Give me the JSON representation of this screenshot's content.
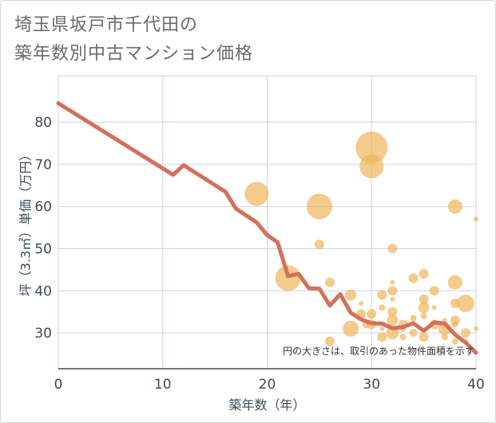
{
  "title_lines": [
    "埼玉県坂戸市千代田の",
    "築年数別中古マンション価格"
  ],
  "chart_data": {
    "type": "scatter",
    "title": "埼玉県坂戸市千代田の築年数別中古マンション価格",
    "xlabel": "築年数（年）",
    "ylabel": "坪（3.3㎡）単価（万円）",
    "xlim": [
      0,
      40
    ],
    "ylim": [
      21.5,
      91
    ],
    "x_ticks": [
      0,
      10,
      20,
      30,
      40
    ],
    "y_ticks": [
      30,
      40,
      50,
      60,
      70,
      80
    ],
    "grid": true,
    "note": "円の大きさは、取引のあった物件面積を示す",
    "colors": {
      "bubble": "#f0b55a",
      "line": "#d4705a",
      "grid": "#c8d6e5"
    },
    "series": [
      {
        "kind": "line",
        "x": [
          0,
          11,
          12,
          16,
          17,
          19,
          20,
          21,
          22,
          23,
          24,
          25,
          26,
          27,
          28,
          29,
          30,
          31,
          32,
          33,
          34,
          35,
          36,
          37,
          38,
          39,
          40
        ],
        "y": [
          84.5,
          67.5,
          69.8,
          63.5,
          59.5,
          56.2,
          53.2,
          51.5,
          43.5,
          44,
          40.6,
          40.5,
          36.5,
          39.2,
          34.8,
          33.2,
          32.3,
          32.2,
          31.1,
          31.4,
          32.3,
          30.5,
          32.5,
          32.2,
          29.6,
          27.7,
          25.3
        ]
      },
      {
        "kind": "bubbles",
        "points": [
          [
            19,
            63,
            15
          ],
          [
            22,
            43,
            16
          ],
          [
            25,
            60,
            16
          ],
          [
            25,
            51,
            6
          ],
          [
            26,
            42,
            6
          ],
          [
            26,
            28,
            6
          ],
          [
            28,
            39,
            7
          ],
          [
            28,
            31,
            10
          ],
          [
            29,
            34.5,
            6
          ],
          [
            29,
            37,
            3
          ],
          [
            29.5,
            32,
            5
          ],
          [
            30,
            74,
            20
          ],
          [
            30,
            69.5,
            15
          ],
          [
            30,
            34.5,
            6
          ],
          [
            30,
            32,
            6
          ],
          [
            31,
            39,
            6
          ],
          [
            31,
            36,
            4
          ],
          [
            31,
            29,
            6
          ],
          [
            31,
            31,
            3
          ],
          [
            32,
            50,
            6
          ],
          [
            32,
            42,
            3
          ],
          [
            32,
            40,
            6
          ],
          [
            32,
            38,
            3
          ],
          [
            32,
            35,
            6
          ],
          [
            32,
            33,
            7
          ],
          [
            32,
            30,
            8
          ],
          [
            33,
            32,
            6
          ],
          [
            33,
            29,
            4
          ],
          [
            33,
            31,
            4
          ],
          [
            34,
            43,
            6
          ],
          [
            34,
            30,
            5
          ],
          [
            34,
            33.5,
            4
          ],
          [
            35,
            44,
            6
          ],
          [
            35,
            38,
            6
          ],
          [
            35,
            36,
            7
          ],
          [
            35,
            34,
            4
          ],
          [
            35,
            29,
            6
          ],
          [
            36,
            40,
            6
          ],
          [
            36,
            32,
            6
          ],
          [
            36,
            36,
            3
          ],
          [
            37,
            31,
            8
          ],
          [
            37,
            29,
            4
          ],
          [
            37,
            33,
            3
          ],
          [
            38,
            60,
            9
          ],
          [
            38,
            42,
            9
          ],
          [
            38,
            37,
            6
          ],
          [
            38,
            33,
            6
          ],
          [
            38,
            32,
            4
          ],
          [
            38,
            28,
            4
          ],
          [
            39,
            37,
            11
          ],
          [
            39,
            30,
            6
          ],
          [
            39,
            28,
            3
          ],
          [
            40,
            57,
            3
          ],
          [
            40,
            31,
            3
          ]
        ]
      }
    ]
  }
}
